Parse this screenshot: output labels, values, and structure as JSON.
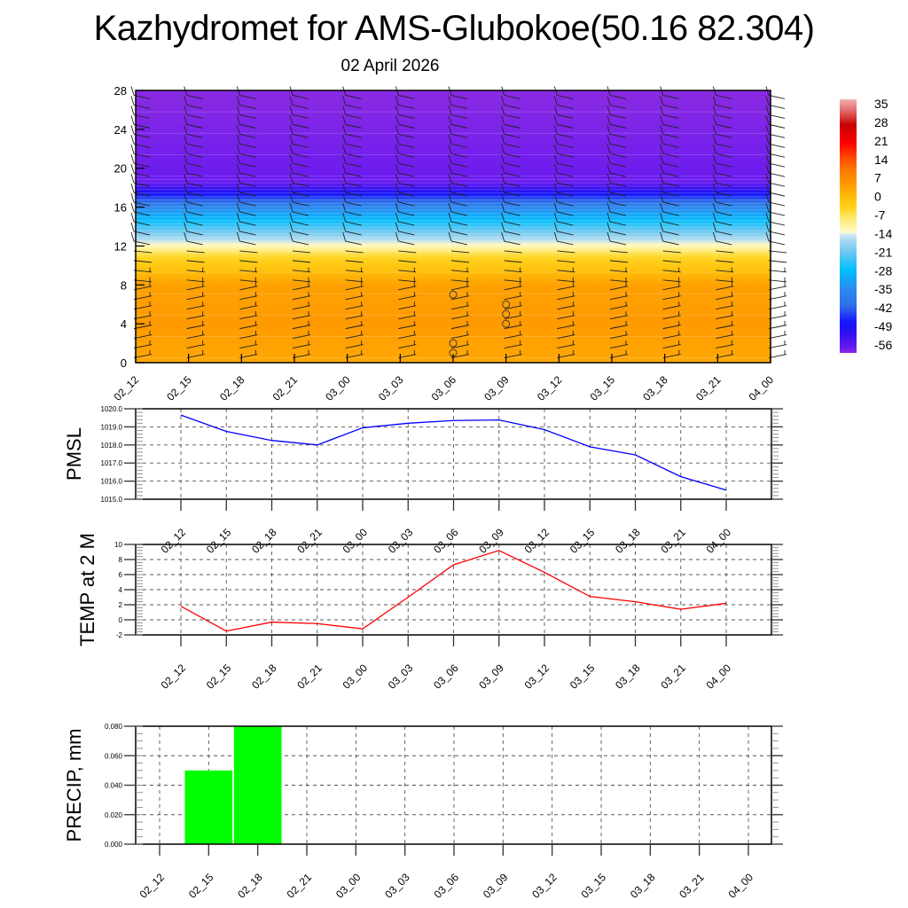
{
  "title": "Kazhydromet for AMS-Glubokoe(50.16 82.304)",
  "subtitle": "02 April 2026",
  "colors": {
    "pmsl_line": "#0000ff",
    "temp_line": "#ff0000",
    "precip_bar": "#00ff00",
    "grid": "#555555"
  },
  "chart_data": [
    {
      "type": "heatmap",
      "name": "vertical-profile",
      "title": "",
      "x_categories": [
        "02_12",
        "02_15",
        "02_18",
        "02_21",
        "03_00",
        "03_03",
        "03_06",
        "03_09",
        "03_12",
        "03_15",
        "03_18",
        "03_21",
        "04_00"
      ],
      "yticks": [
        0,
        4,
        8,
        12,
        16,
        20,
        24,
        28
      ],
      "ylim": [
        0,
        28
      ],
      "colorbar": {
        "labels": [
          "35",
          "28",
          "21",
          "14",
          "7",
          "0",
          "-7",
          "-14",
          "-21",
          "-28",
          "-35",
          "-42",
          "-49",
          "-56"
        ],
        "range": [
          -60,
          38
        ]
      },
      "temperature_profile_by_level": [
        {
          "level": 0,
          "value": 3
        },
        {
          "level": 4,
          "value": 5
        },
        {
          "level": 8,
          "value": 4
        },
        {
          "level": 11,
          "value": -5
        },
        {
          "level": 12,
          "value": -12
        },
        {
          "level": 14,
          "value": -24
        },
        {
          "level": 16,
          "value": -36
        },
        {
          "level": 17.5,
          "value": -50
        },
        {
          "level": 18.5,
          "value": -58
        },
        {
          "level": 28,
          "value": -62
        }
      ],
      "overlay": "wind barbs"
    },
    {
      "type": "line",
      "name": "pmsl",
      "ylabel": "PMSL",
      "categories": [
        "02_12",
        "02_15",
        "02_18",
        "02_21",
        "03_00",
        "03_03",
        "03_06",
        "03_09",
        "03_12",
        "03_15",
        "03_18",
        "03_21",
        "04_00"
      ],
      "values": [
        1019.65,
        1018.75,
        1018.25,
        1018.0,
        1018.95,
        1019.2,
        1019.35,
        1019.38,
        1018.85,
        1017.9,
        1017.45,
        1016.25,
        1015.5
      ],
      "ylim": [
        1015.0,
        1020.0
      ],
      "yticks": [
        "1015.0",
        "1016.0",
        "1017.0",
        "1018.0",
        "1019.0",
        "1020.0"
      ],
      "grid": true
    },
    {
      "type": "line",
      "name": "temp",
      "ylabel": "TEMP at 2 M",
      "categories": [
        "02_12",
        "02_15",
        "02_18",
        "02_21",
        "03_00",
        "03_03",
        "03_06",
        "03_09",
        "03_12",
        "03_15",
        "03_18",
        "03_21",
        "04_00"
      ],
      "values": [
        1.8,
        -1.5,
        -0.3,
        -0.5,
        -1.2,
        3.0,
        7.3,
        9.2,
        6.3,
        3.1,
        2.4,
        1.4,
        2.2
      ],
      "ylim": [
        -2,
        10
      ],
      "yticks": [
        "-2",
        "0",
        "2",
        "4",
        "6",
        "8",
        "10"
      ],
      "grid": true
    },
    {
      "type": "bar",
      "name": "precip",
      "ylabel": "PRECIP, mm",
      "categories": [
        "02_12",
        "02_15",
        "02_18",
        "02_21",
        "03_00",
        "03_03",
        "03_06",
        "03_09",
        "03_12",
        "03_15",
        "03_18",
        "03_21",
        "04_00"
      ],
      "values": [
        0,
        0.05,
        0.08,
        0,
        0,
        0,
        0,
        0,
        0,
        0,
        0,
        0,
        0
      ],
      "ylim": [
        0,
        0.08
      ],
      "yticks": [
        "0.000",
        "0.020",
        "0.040",
        "0.060",
        "0.080"
      ],
      "grid": true
    }
  ]
}
